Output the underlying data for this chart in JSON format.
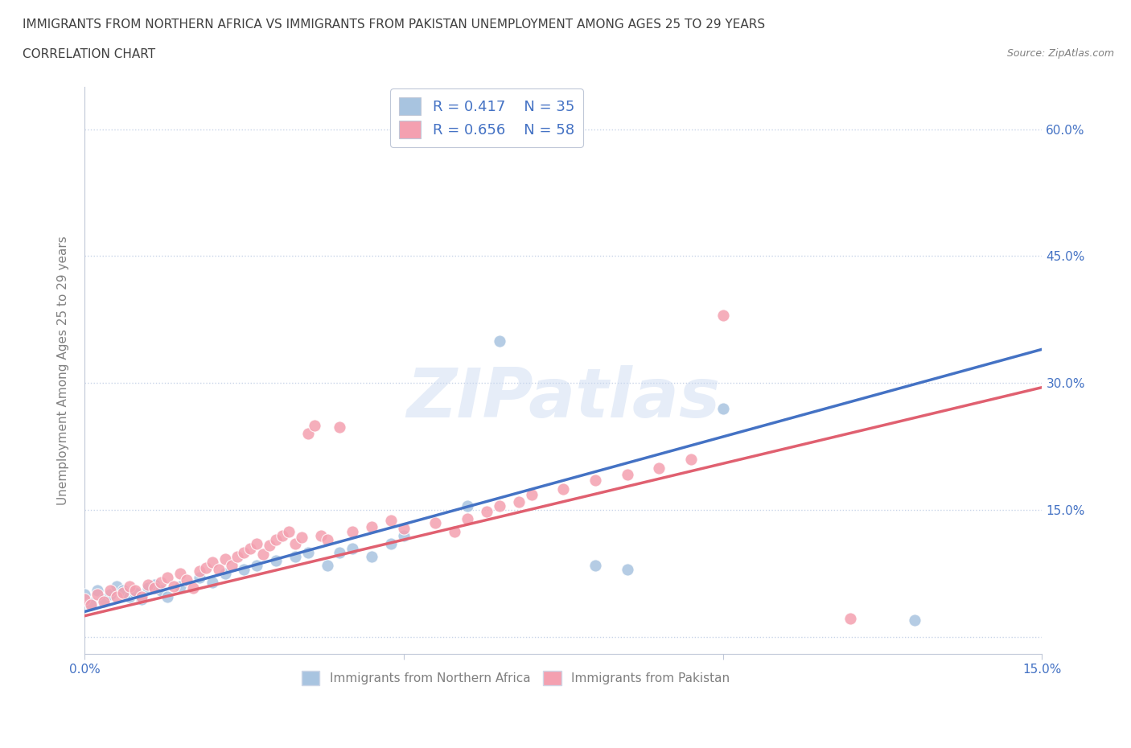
{
  "title_line1": "IMMIGRANTS FROM NORTHERN AFRICA VS IMMIGRANTS FROM PAKISTAN UNEMPLOYMENT AMONG AGES 25 TO 29 YEARS",
  "title_line2": "CORRELATION CHART",
  "source": "Source: ZipAtlas.com",
  "ylabel": "Unemployment Among Ages 25 to 29 years",
  "xlim": [
    0.0,
    0.15
  ],
  "ylim": [
    -0.02,
    0.65
  ],
  "ytick_positions": [
    0.0,
    0.15,
    0.3,
    0.45,
    0.6
  ],
  "ytick_labels": [
    "",
    "15.0%",
    "30.0%",
    "45.0%",
    "60.0%"
  ],
  "legend_r1": "R = 0.417",
  "legend_n1": "N = 35",
  "legend_r2": "R = 0.656",
  "legend_n2": "N = 58",
  "color_blue": "#a8c4e0",
  "color_pink": "#f4a0b0",
  "line_color_blue": "#4472c4",
  "line_color_pink": "#e06070",
  "scatter_blue": [
    [
      0.0,
      0.05
    ],
    [
      0.001,
      0.04
    ],
    [
      0.002,
      0.055
    ],
    [
      0.003,
      0.045
    ],
    [
      0.004,
      0.05
    ],
    [
      0.005,
      0.06
    ],
    [
      0.006,
      0.055
    ],
    [
      0.007,
      0.048
    ],
    [
      0.008,
      0.052
    ],
    [
      0.009,
      0.045
    ],
    [
      0.01,
      0.058
    ],
    [
      0.011,
      0.062
    ],
    [
      0.012,
      0.055
    ],
    [
      0.013,
      0.048
    ],
    [
      0.015,
      0.06
    ],
    [
      0.018,
      0.07
    ],
    [
      0.02,
      0.065
    ],
    [
      0.022,
      0.075
    ],
    [
      0.025,
      0.08
    ],
    [
      0.027,
      0.085
    ],
    [
      0.03,
      0.09
    ],
    [
      0.033,
      0.095
    ],
    [
      0.035,
      0.1
    ],
    [
      0.038,
      0.085
    ],
    [
      0.04,
      0.1
    ],
    [
      0.042,
      0.105
    ],
    [
      0.045,
      0.095
    ],
    [
      0.048,
      0.11
    ],
    [
      0.05,
      0.12
    ],
    [
      0.06,
      0.155
    ],
    [
      0.065,
      0.35
    ],
    [
      0.08,
      0.085
    ],
    [
      0.085,
      0.08
    ],
    [
      0.1,
      0.27
    ],
    [
      0.13,
      0.02
    ]
  ],
  "scatter_pink": [
    [
      0.0,
      0.045
    ],
    [
      0.001,
      0.038
    ],
    [
      0.002,
      0.05
    ],
    [
      0.003,
      0.042
    ],
    [
      0.004,
      0.055
    ],
    [
      0.005,
      0.048
    ],
    [
      0.006,
      0.052
    ],
    [
      0.007,
      0.06
    ],
    [
      0.008,
      0.055
    ],
    [
      0.009,
      0.048
    ],
    [
      0.01,
      0.062
    ],
    [
      0.011,
      0.058
    ],
    [
      0.012,
      0.065
    ],
    [
      0.013,
      0.07
    ],
    [
      0.014,
      0.06
    ],
    [
      0.015,
      0.075
    ],
    [
      0.016,
      0.068
    ],
    [
      0.017,
      0.058
    ],
    [
      0.018,
      0.078
    ],
    [
      0.019,
      0.082
    ],
    [
      0.02,
      0.088
    ],
    [
      0.021,
      0.08
    ],
    [
      0.022,
      0.092
    ],
    [
      0.023,
      0.085
    ],
    [
      0.024,
      0.095
    ],
    [
      0.025,
      0.1
    ],
    [
      0.026,
      0.105
    ],
    [
      0.027,
      0.11
    ],
    [
      0.028,
      0.098
    ],
    [
      0.029,
      0.108
    ],
    [
      0.03,
      0.115
    ],
    [
      0.031,
      0.12
    ],
    [
      0.032,
      0.125
    ],
    [
      0.033,
      0.11
    ],
    [
      0.034,
      0.118
    ],
    [
      0.035,
      0.24
    ],
    [
      0.036,
      0.25
    ],
    [
      0.037,
      0.12
    ],
    [
      0.038,
      0.115
    ],
    [
      0.04,
      0.248
    ],
    [
      0.042,
      0.125
    ],
    [
      0.045,
      0.13
    ],
    [
      0.048,
      0.138
    ],
    [
      0.05,
      0.128
    ],
    [
      0.055,
      0.135
    ],
    [
      0.058,
      0.125
    ],
    [
      0.06,
      0.14
    ],
    [
      0.063,
      0.148
    ],
    [
      0.065,
      0.155
    ],
    [
      0.068,
      0.16
    ],
    [
      0.07,
      0.168
    ],
    [
      0.075,
      0.175
    ],
    [
      0.08,
      0.185
    ],
    [
      0.085,
      0.192
    ],
    [
      0.09,
      0.2
    ],
    [
      0.095,
      0.21
    ],
    [
      0.1,
      0.38
    ],
    [
      0.12,
      0.022
    ]
  ],
  "background_color": "#ffffff",
  "grid_color": "#c8d4e8",
  "title_color": "#404040",
  "axis_color": "#808080",
  "watermark": "ZIPatlas"
}
